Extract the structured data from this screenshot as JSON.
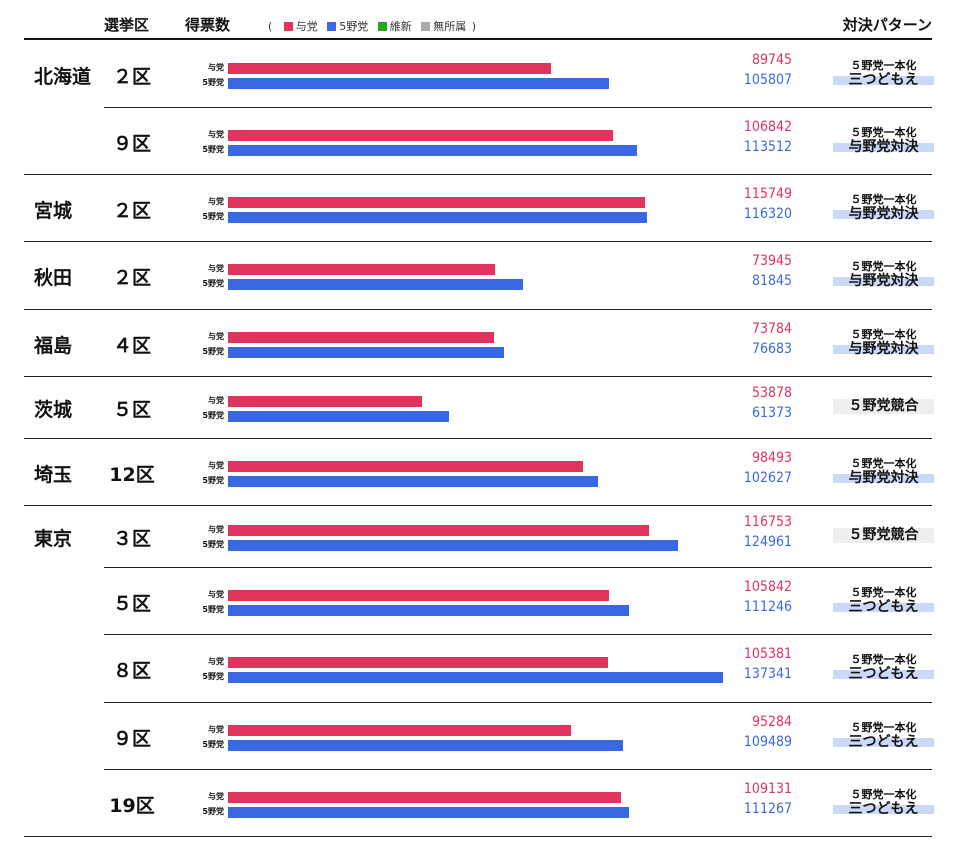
{
  "header": {
    "district": "選挙区",
    "votes": "得票数",
    "pattern": "対決パターン"
  },
  "legend": {
    "open": "(",
    "close": ")",
    "items": [
      {
        "label": "与党",
        "color": "#e0335e"
      },
      {
        "label": "5野党",
        "color": "#3a68e2"
      },
      {
        "label": "維新",
        "color": "#27a51d"
      },
      {
        "label": "無所属",
        "color": "#aaaaaa"
      }
    ]
  },
  "colors": {
    "ruling": "#e0335e",
    "opposition": "#3a68e2"
  },
  "bar_labels": {
    "ruling": "与党",
    "opposition": "5野党"
  },
  "chart_data": {
    "type": "bar",
    "orientation": "horizontal",
    "series": [
      {
        "name": "与党",
        "values": [
          89745,
          106842,
          115749,
          73945,
          73784,
          53878,
          98493,
          116753,
          105842,
          105381,
          95284,
          109131
        ]
      },
      {
        "name": "5野党",
        "values": [
          105807,
          113512,
          116320,
          81845,
          76683,
          61373,
          102627,
          124961,
          111246,
          137341,
          109489,
          111267
        ]
      }
    ],
    "xlim": [
      0,
      137341
    ],
    "rows": [
      {
        "prefecture": "北海道",
        "district": "２区",
        "ruling": 89745,
        "opposition": 105807,
        "pattern_top": "５野党一本化",
        "pattern": "三つどもえ"
      },
      {
        "prefecture": "",
        "district": "９区",
        "ruling": 106842,
        "opposition": 113512,
        "pattern_top": "５野党一本化",
        "pattern": "与野党対決"
      },
      {
        "prefecture": "宮城",
        "district": "２区",
        "ruling": 115749,
        "opposition": 116320,
        "pattern_top": "５野党一本化",
        "pattern": "与野党対決"
      },
      {
        "prefecture": "秋田",
        "district": "２区",
        "ruling": 73945,
        "opposition": 81845,
        "pattern_top": "５野党一本化",
        "pattern": "与野党対決"
      },
      {
        "prefecture": "福島",
        "district": "４区",
        "ruling": 73784,
        "opposition": 76683,
        "pattern_top": "５野党一本化",
        "pattern": "与野党対決"
      },
      {
        "prefecture": "茨城",
        "district": "５区",
        "ruling": 53878,
        "opposition": 61373,
        "pattern_top": "",
        "pattern": "５野党競合"
      },
      {
        "prefecture": "埼玉",
        "district": "12区",
        "ruling": 98493,
        "opposition": 102627,
        "pattern_top": "５野党一本化",
        "pattern": "与野党対決"
      },
      {
        "prefecture": "東京",
        "district": "３区",
        "ruling": 116753,
        "opposition": 124961,
        "pattern_top": "",
        "pattern": "５野党競合"
      },
      {
        "prefecture": "",
        "district": "５区",
        "ruling": 105842,
        "opposition": 111246,
        "pattern_top": "５野党一本化",
        "pattern": "三つどもえ"
      },
      {
        "prefecture": "",
        "district": "８区",
        "ruling": 105381,
        "opposition": 137341,
        "pattern_top": "５野党一本化",
        "pattern": "三つどもえ"
      },
      {
        "prefecture": "",
        "district": "９区",
        "ruling": 95284,
        "opposition": 109489,
        "pattern_top": "５野党一本化",
        "pattern": "三つどもえ"
      },
      {
        "prefecture": "",
        "district": "19区",
        "ruling": 109131,
        "opposition": 111267,
        "pattern_top": "５野党一本化",
        "pattern": "三つどもえ"
      }
    ]
  }
}
